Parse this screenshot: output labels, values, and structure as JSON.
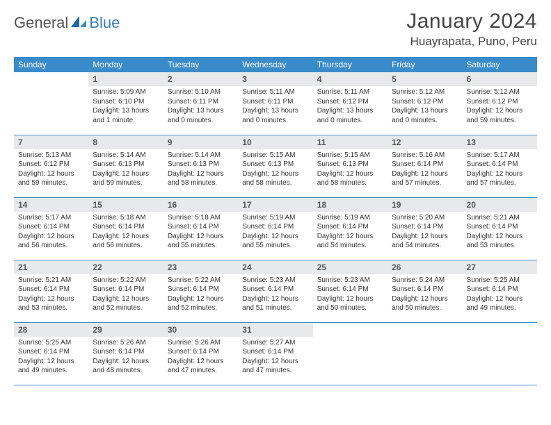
{
  "logo": {
    "part1": "General",
    "part2": "Blue"
  },
  "title": "January 2024",
  "location": "Huayrapata, Puno, Peru",
  "colors": {
    "header_bg": "#3a8bc9",
    "header_text": "#ffffff",
    "daynum_bg": "#e8e9ea",
    "rule": "#3a8bc9",
    "logo_accent": "#3a7db8"
  },
  "weekdays": [
    "Sunday",
    "Monday",
    "Tuesday",
    "Wednesday",
    "Thursday",
    "Friday",
    "Saturday"
  ],
  "grid": {
    "first_weekday_index": 1,
    "days_in_month": 31
  },
  "days": {
    "1": {
      "sunrise": "5:09 AM",
      "sunset": "6:10 PM",
      "daylight": "13 hours and 1 minute."
    },
    "2": {
      "sunrise": "5:10 AM",
      "sunset": "6:11 PM",
      "daylight": "13 hours and 0 minutes."
    },
    "3": {
      "sunrise": "5:11 AM",
      "sunset": "6:11 PM",
      "daylight": "13 hours and 0 minutes."
    },
    "4": {
      "sunrise": "5:11 AM",
      "sunset": "6:12 PM",
      "daylight": "13 hours and 0 minutes."
    },
    "5": {
      "sunrise": "5:12 AM",
      "sunset": "6:12 PM",
      "daylight": "13 hours and 0 minutes."
    },
    "6": {
      "sunrise": "5:12 AM",
      "sunset": "6:12 PM",
      "daylight": "12 hours and 59 minutes."
    },
    "7": {
      "sunrise": "5:13 AM",
      "sunset": "6:12 PM",
      "daylight": "12 hours and 59 minutes."
    },
    "8": {
      "sunrise": "5:14 AM",
      "sunset": "6:13 PM",
      "daylight": "12 hours and 59 minutes."
    },
    "9": {
      "sunrise": "5:14 AM",
      "sunset": "6:13 PM",
      "daylight": "12 hours and 58 minutes."
    },
    "10": {
      "sunrise": "5:15 AM",
      "sunset": "6:13 PM",
      "daylight": "12 hours and 58 minutes."
    },
    "11": {
      "sunrise": "5:15 AM",
      "sunset": "6:13 PM",
      "daylight": "12 hours and 58 minutes."
    },
    "12": {
      "sunrise": "5:16 AM",
      "sunset": "6:14 PM",
      "daylight": "12 hours and 57 minutes."
    },
    "13": {
      "sunrise": "5:17 AM",
      "sunset": "6:14 PM",
      "daylight": "12 hours and 57 minutes."
    },
    "14": {
      "sunrise": "5:17 AM",
      "sunset": "6:14 PM",
      "daylight": "12 hours and 56 minutes."
    },
    "15": {
      "sunrise": "5:18 AM",
      "sunset": "6:14 PM",
      "daylight": "12 hours and 56 minutes."
    },
    "16": {
      "sunrise": "5:18 AM",
      "sunset": "6:14 PM",
      "daylight": "12 hours and 55 minutes."
    },
    "17": {
      "sunrise": "5:19 AM",
      "sunset": "6:14 PM",
      "daylight": "12 hours and 55 minutes."
    },
    "18": {
      "sunrise": "5:19 AM",
      "sunset": "6:14 PM",
      "daylight": "12 hours and 54 minutes."
    },
    "19": {
      "sunrise": "5:20 AM",
      "sunset": "6:14 PM",
      "daylight": "12 hours and 54 minutes."
    },
    "20": {
      "sunrise": "5:21 AM",
      "sunset": "6:14 PM",
      "daylight": "12 hours and 53 minutes."
    },
    "21": {
      "sunrise": "5:21 AM",
      "sunset": "6:14 PM",
      "daylight": "12 hours and 53 minutes."
    },
    "22": {
      "sunrise": "5:22 AM",
      "sunset": "6:14 PM",
      "daylight": "12 hours and 52 minutes."
    },
    "23": {
      "sunrise": "5:22 AM",
      "sunset": "6:14 PM",
      "daylight": "12 hours and 52 minutes."
    },
    "24": {
      "sunrise": "5:23 AM",
      "sunset": "6:14 PM",
      "daylight": "12 hours and 51 minutes."
    },
    "25": {
      "sunrise": "5:23 AM",
      "sunset": "6:14 PM",
      "daylight": "12 hours and 50 minutes."
    },
    "26": {
      "sunrise": "5:24 AM",
      "sunset": "6:14 PM",
      "daylight": "12 hours and 50 minutes."
    },
    "27": {
      "sunrise": "5:25 AM",
      "sunset": "6:14 PM",
      "daylight": "12 hours and 49 minutes."
    },
    "28": {
      "sunrise": "5:25 AM",
      "sunset": "6:14 PM",
      "daylight": "12 hours and 49 minutes."
    },
    "29": {
      "sunrise": "5:26 AM",
      "sunset": "6:14 PM",
      "daylight": "12 hours and 48 minutes."
    },
    "30": {
      "sunrise": "5:26 AM",
      "sunset": "6:14 PM",
      "daylight": "12 hours and 47 minutes."
    },
    "31": {
      "sunrise": "5:27 AM",
      "sunset": "6:14 PM",
      "daylight": "12 hours and 47 minutes."
    }
  },
  "labels": {
    "sunrise_prefix": "Sunrise: ",
    "sunset_prefix": "Sunset: ",
    "daylight_prefix": "Daylight: "
  }
}
